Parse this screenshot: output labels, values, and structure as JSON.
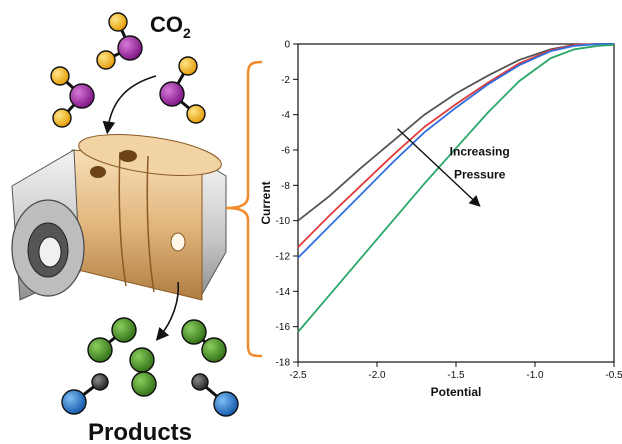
{
  "figure": {
    "co2_label": "CO",
    "co2_subscript": "2",
    "products_label": "Products",
    "colors": {
      "oxygen_atom": "#f6b40e",
      "carbon_atom_co2": "#9b1fa0",
      "product_green": "#3e8a1e",
      "product_blue": "#1a70c8",
      "product_grey": "#3c3c3c",
      "bracket": "#f08a2c",
      "cylinder_grey": "#cfcfcf",
      "cylinder_copper": "#e2b67e"
    },
    "icons": [
      "co2-molecule-icon",
      "curved-arrow-icon",
      "flow-cell-icon",
      "product-molecule-icon",
      "bracket-icon"
    ]
  },
  "chart_data": {
    "type": "line",
    "xlabel": "Potential",
    "ylabel": "Current",
    "xlim": [
      -2.5,
      -0.5
    ],
    "ylim": [
      -18,
      0
    ],
    "xticks": [
      -2.5,
      -2.0,
      -1.5,
      -1.0,
      -0.5
    ],
    "xtick_labels": [
      "-2.5",
      "-2.0",
      "-1.5",
      "-1.0",
      "-0.5"
    ],
    "yticks": [
      0,
      -2,
      -4,
      -6,
      -8,
      -10,
      -12,
      -14,
      -16,
      -18
    ],
    "ytick_labels": [
      "0",
      "-2",
      "-4",
      "-6",
      "-8",
      "-10",
      "-12",
      "-14",
      "-16",
      "-18"
    ],
    "grid": false,
    "annotation": {
      "line1": "Increasing",
      "line2": "Pressure",
      "arrow": "down-right"
    },
    "series": [
      {
        "color": "#555555",
        "x": [
          -2.5,
          -2.3,
          -2.1,
          -1.9,
          -1.7,
          -1.5,
          -1.3,
          -1.1,
          -0.9,
          -0.75,
          -0.6,
          -0.5
        ],
        "y": [
          -10.0,
          -8.6,
          -7.0,
          -5.5,
          -4.0,
          -2.8,
          -1.8,
          -0.9,
          -0.3,
          -0.05,
          0.0,
          0.0
        ]
      },
      {
        "color": "#e03b3b",
        "x": [
          -2.5,
          -2.3,
          -2.1,
          -1.9,
          -1.7,
          -1.5,
          -1.3,
          -1.1,
          -0.9,
          -0.75,
          -0.6,
          -0.5
        ],
        "y": [
          -11.5,
          -9.7,
          -8.0,
          -6.3,
          -4.7,
          -3.4,
          -2.2,
          -1.1,
          -0.35,
          -0.05,
          0.0,
          0.0
        ]
      },
      {
        "color": "#2e6fe0",
        "x": [
          -2.5,
          -2.3,
          -2.1,
          -1.9,
          -1.7,
          -1.5,
          -1.3,
          -1.1,
          -0.9,
          -0.75,
          -0.6,
          -0.5
        ],
        "y": [
          -12.1,
          -10.3,
          -8.5,
          -6.7,
          -5.0,
          -3.6,
          -2.3,
          -1.2,
          -0.4,
          -0.1,
          0.0,
          0.0
        ]
      },
      {
        "color": "#2aa86a",
        "x": [
          -2.5,
          -2.3,
          -2.1,
          -1.9,
          -1.7,
          -1.5,
          -1.3,
          -1.1,
          -0.9,
          -0.75,
          -0.6,
          -0.5
        ],
        "y": [
          -16.3,
          -14.2,
          -12.1,
          -10.0,
          -7.9,
          -5.9,
          -3.9,
          -2.1,
          -0.8,
          -0.3,
          -0.1,
          -0.05
        ]
      }
    ]
  }
}
